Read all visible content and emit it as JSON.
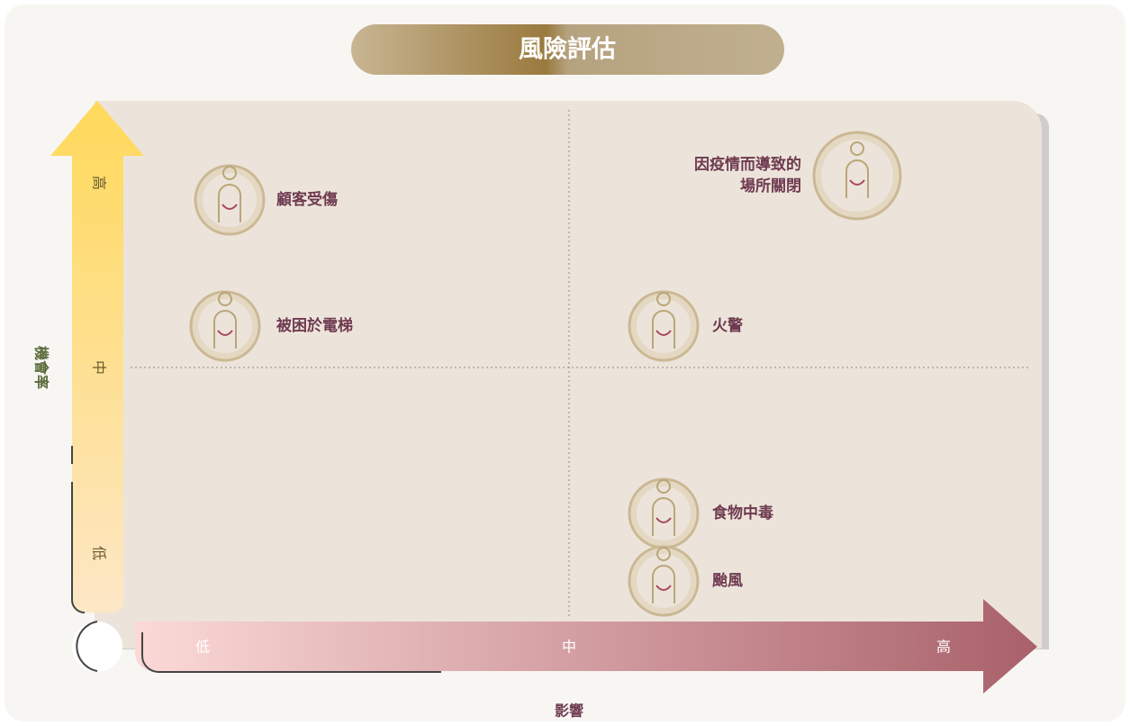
{
  "title": "風險評估",
  "y_axis": {
    "label": "機會率",
    "ticks": [
      "高",
      "中",
      "低"
    ]
  },
  "x_axis": {
    "label": "影響",
    "ticks": [
      "低",
      "中",
      "高"
    ]
  },
  "items": [
    {
      "label": [
        "顧客受傷"
      ]
    },
    {
      "label": [
        "因疫情而導致的",
        "場所關閉"
      ]
    },
    {
      "label": [
        "被困於電梯"
      ]
    },
    {
      "label": [
        "火警"
      ]
    },
    {
      "label": [
        "食物中毒"
      ]
    },
    {
      "label": [
        "颱風"
      ]
    }
  ]
}
